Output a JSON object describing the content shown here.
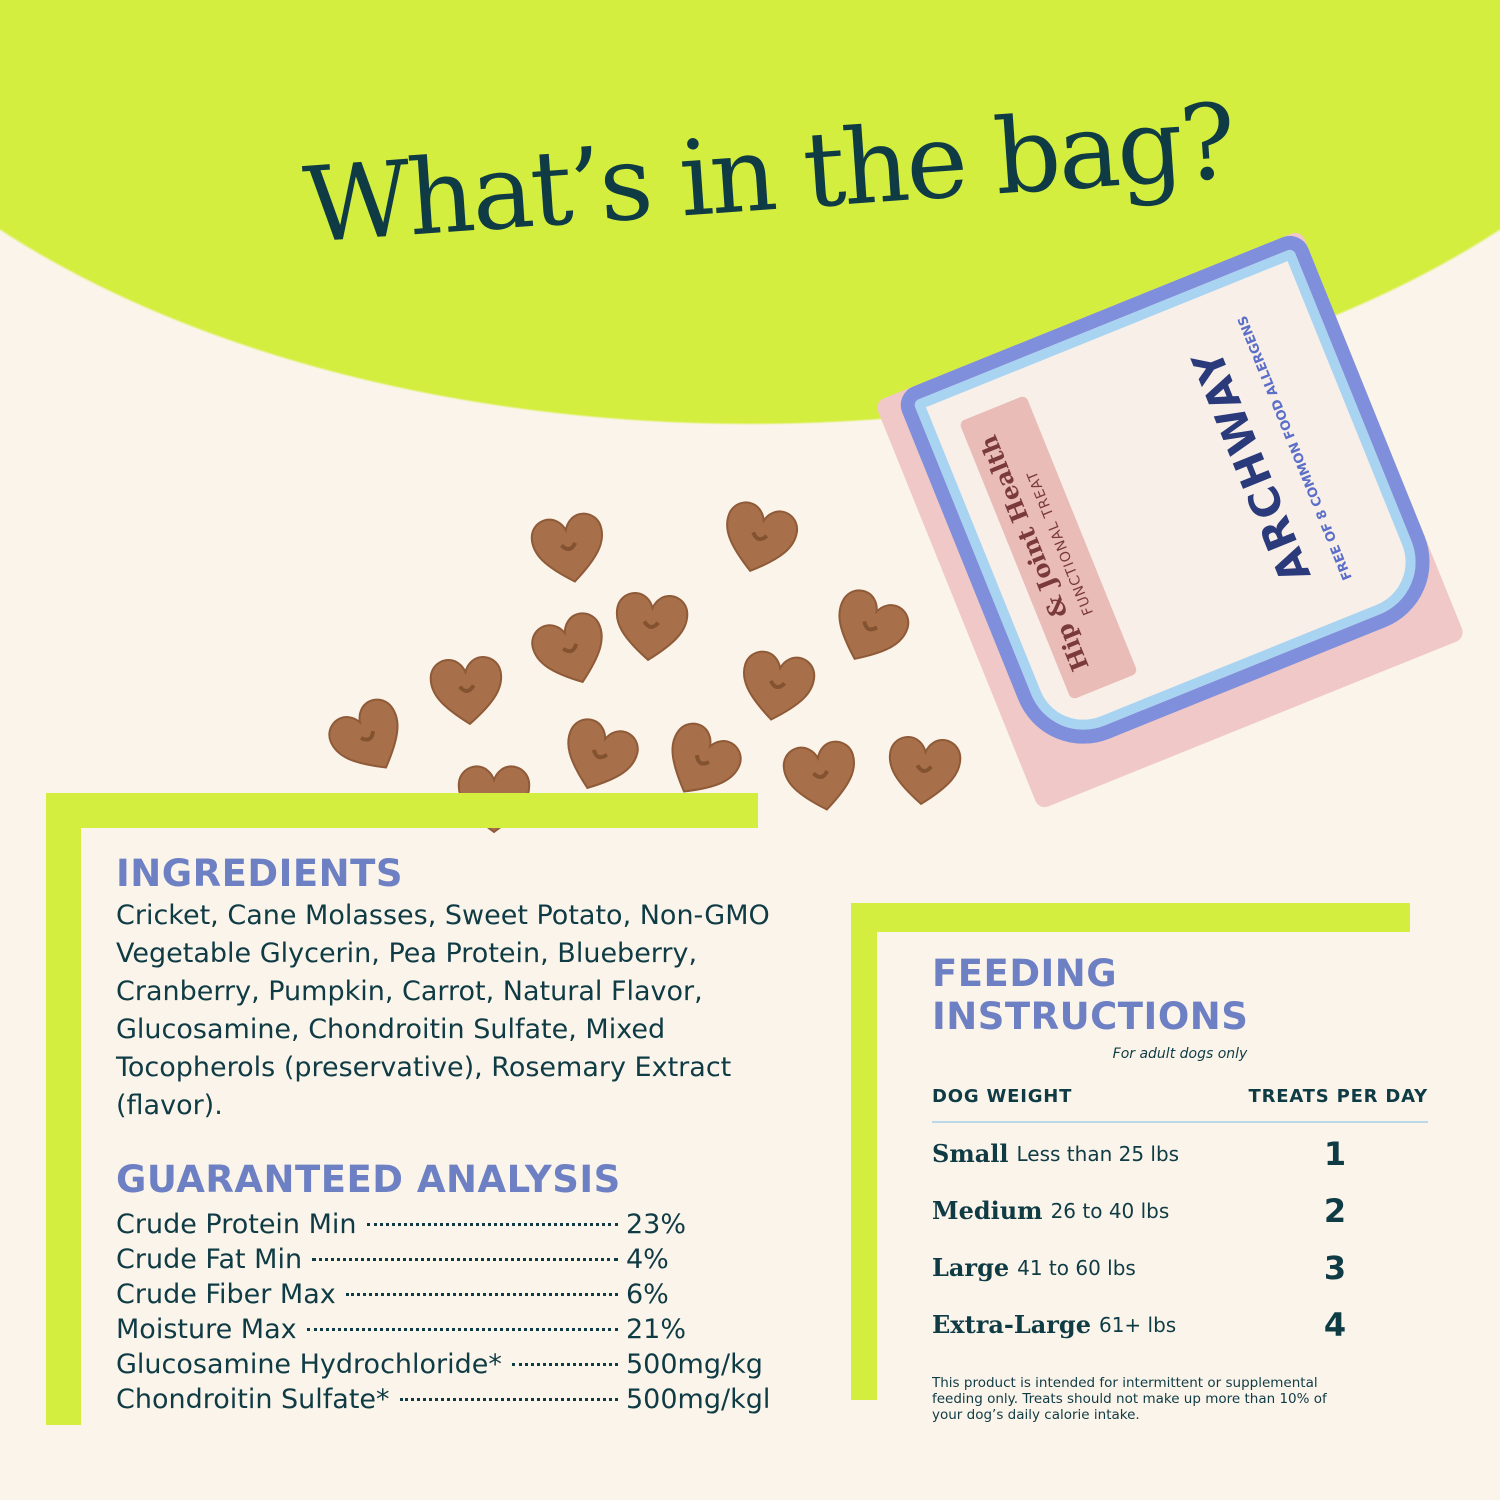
{
  "title": "What’s in the bag?",
  "colors": {
    "accent_lime": "#d4ee3f",
    "heading_blue": "#6d80c4",
    "text_dark": "#0f3b45",
    "background": "#fbf4ea",
    "treat_brown": "#a8704a"
  },
  "bag": {
    "brand": "ARCHWAY",
    "product": "Hip & Joint Health",
    "type": "FUNCTIONAL TREAT",
    "allergens": "FREE OF 8 COMMON FOOD ALLERGENS"
  },
  "ingredients": {
    "heading": "INGREDIENTS",
    "text": "Cricket, Cane Molasses, Sweet Potato, Non-GMO Vegetable Glycerin, Pea Protein, Blueberry, Cranberry, Pumpkin, Carrot, Natural Flavor, Glucosamine, Chondroitin Sulfate, Mixed Tocopherols (preservative), Rosemary Extract (flavor)."
  },
  "analysis": {
    "heading": "GUARANTEED ANALYSIS",
    "rows": [
      {
        "label": "Crude Protein Min",
        "value": "23%"
      },
      {
        "label": "Crude Fat Min",
        "value": "4%"
      },
      {
        "label": "Crude Fiber Max",
        "value": "6%"
      },
      {
        "label": "Moisture Max",
        "value": "21%"
      },
      {
        "label": "Glucosamine Hydrochloride*",
        "value": "500mg/kg"
      },
      {
        "label": "Chondroitin Sulfate*",
        "value": "500mg/kgl"
      }
    ]
  },
  "feeding": {
    "heading": "FEEDING INSTRUCTIONS",
    "subtitle": "For adult dogs only",
    "col_weight": "DOG WEIGHT",
    "col_treats": "TREATS PER DAY",
    "rows": [
      {
        "size": "Small",
        "weight": "Less than 25 lbs",
        "treats": "1"
      },
      {
        "size": "Medium",
        "weight": "26 to 40 lbs",
        "treats": "2"
      },
      {
        "size": "Large",
        "weight": "41 to 60 lbs",
        "treats": "3"
      },
      {
        "size": "Extra-Large",
        "weight": "61+ lbs",
        "treats": "4"
      }
    ],
    "note": "This product is intended for intermittent or supplemental feeding only. Treats should not make up more than 10% of your dog’s daily calorie intake."
  }
}
